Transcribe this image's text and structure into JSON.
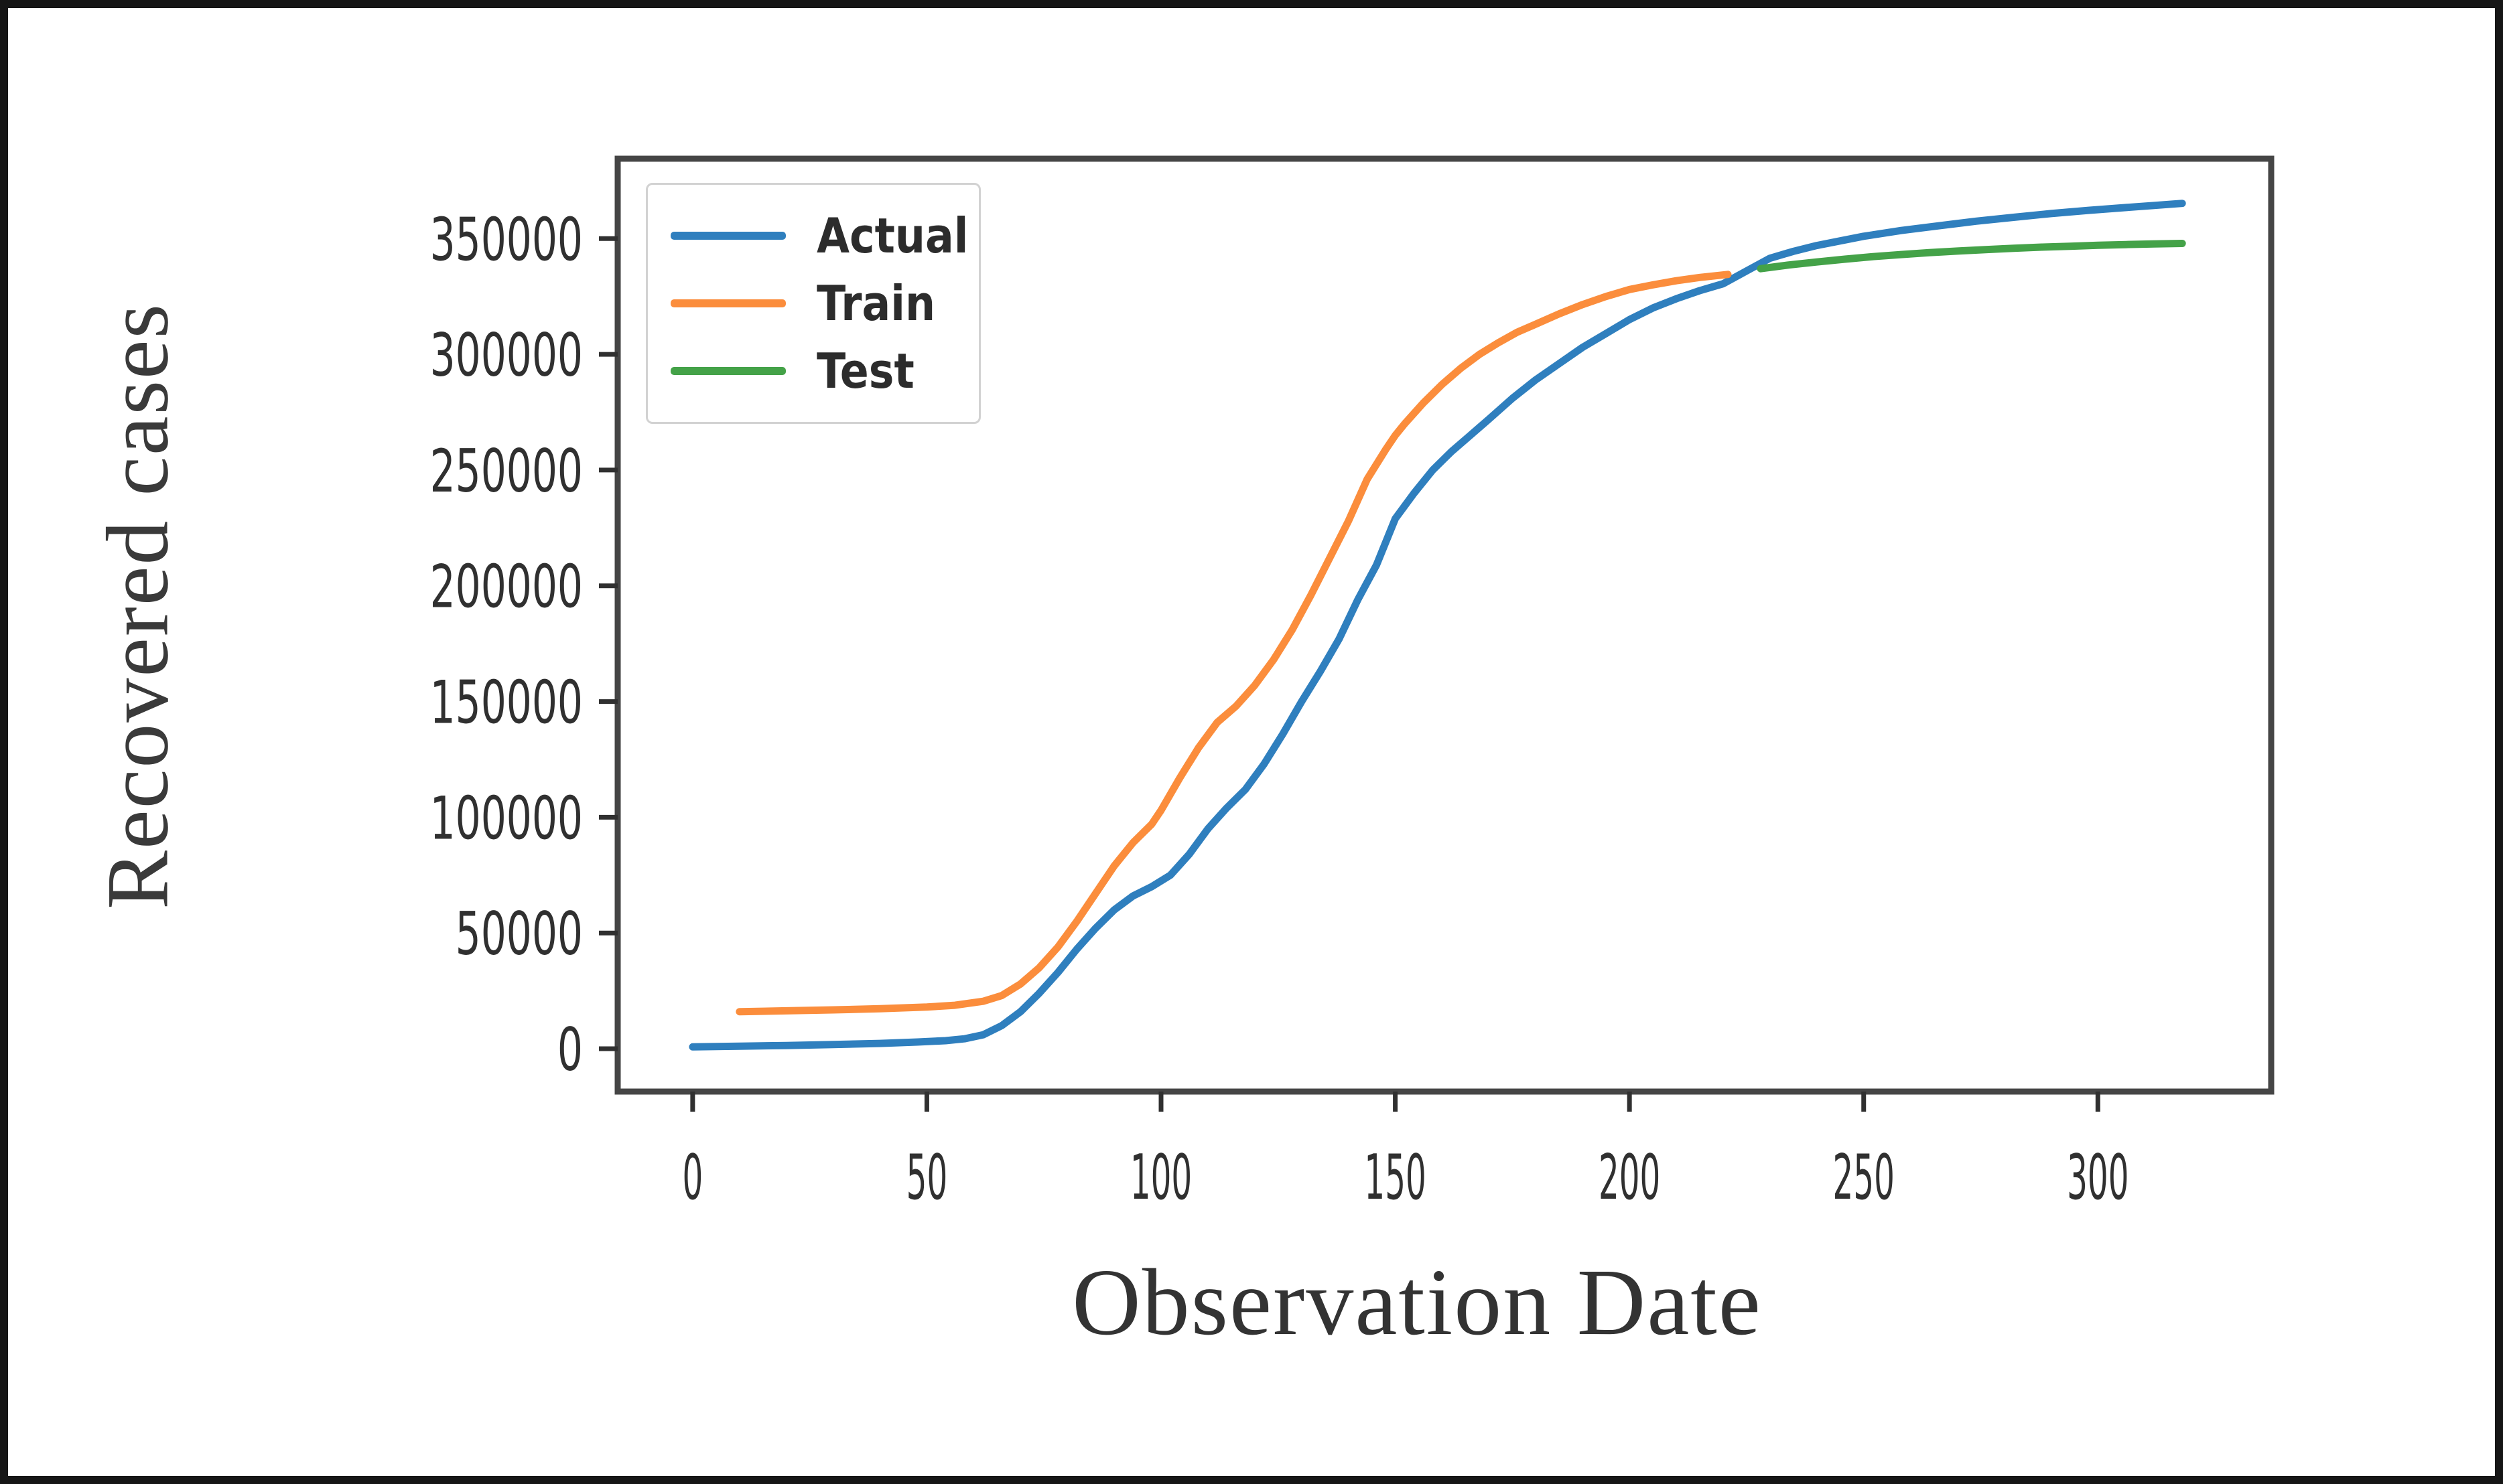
{
  "figure": {
    "background": "#ffffff",
    "border_color": "#161616",
    "spine_color": "#454545",
    "tick_color": "#303030"
  },
  "chart_data": {
    "type": "line",
    "title": "",
    "xlabel": "Observation Date",
    "ylabel": "Recovered cases",
    "grid": false,
    "legend_position": "upper left",
    "xlim": [
      -16,
      337
    ],
    "ylim": [
      -18500,
      384500
    ],
    "x_ticks": [
      0,
      50,
      100,
      150,
      200,
      250,
      300
    ],
    "y_ticks": [
      0,
      50000,
      100000,
      150000,
      200000,
      250000,
      300000,
      350000
    ],
    "series": [
      {
        "name": "Actual",
        "color": "#2f7fbe",
        "points": [
          [
            0,
            800
          ],
          [
            10,
            1100
          ],
          [
            20,
            1400
          ],
          [
            30,
            1800
          ],
          [
            40,
            2300
          ],
          [
            48,
            2900
          ],
          [
            54,
            3500
          ],
          [
            58,
            4300
          ],
          [
            62,
            6000
          ],
          [
            66,
            10000
          ],
          [
            70,
            16000
          ],
          [
            74,
            24000
          ],
          [
            78,
            33000
          ],
          [
            82,
            43000
          ],
          [
            86,
            52000
          ],
          [
            90,
            60000
          ],
          [
            94,
            66000
          ],
          [
            98,
            70000
          ],
          [
            102,
            75000
          ],
          [
            106,
            84000
          ],
          [
            110,
            95000
          ],
          [
            114,
            104000
          ],
          [
            118,
            112000
          ],
          [
            122,
            123000
          ],
          [
            126,
            136000
          ],
          [
            130,
            150000
          ],
          [
            134,
            163000
          ],
          [
            138,
            177000
          ],
          [
            142,
            194000
          ],
          [
            146,
            209000
          ],
          [
            150,
            229000
          ],
          [
            154,
            240000
          ],
          [
            158,
            250000
          ],
          [
            162,
            258000
          ],
          [
            166,
            265000
          ],
          [
            170,
            272000
          ],
          [
            175,
            281000
          ],
          [
            180,
            289000
          ],
          [
            185,
            296000
          ],
          [
            190,
            303000
          ],
          [
            195,
            309000
          ],
          [
            200,
            315000
          ],
          [
            205,
            320000
          ],
          [
            210,
            324000
          ],
          [
            215,
            327500
          ],
          [
            220,
            330500
          ],
          [
            225,
            336000
          ],
          [
            230,
            341500
          ],
          [
            235,
            344500
          ],
          [
            240,
            347000
          ],
          [
            245,
            349000
          ],
          [
            250,
            351000
          ],
          [
            258,
            353500
          ],
          [
            266,
            355500
          ],
          [
            274,
            357500
          ],
          [
            282,
            359200
          ],
          [
            290,
            360800
          ],
          [
            298,
            362200
          ],
          [
            306,
            363400
          ],
          [
            312,
            364300
          ],
          [
            318,
            365200
          ]
        ]
      },
      {
        "name": "Train",
        "color": "#fb8d3c",
        "points": [
          [
            10,
            16000
          ],
          [
            20,
            16400
          ],
          [
            30,
            16800
          ],
          [
            40,
            17300
          ],
          [
            50,
            18000
          ],
          [
            56,
            18800
          ],
          [
            62,
            20500
          ],
          [
            66,
            23000
          ],
          [
            70,
            28000
          ],
          [
            74,
            35000
          ],
          [
            78,
            44000
          ],
          [
            82,
            55000
          ],
          [
            86,
            67000
          ],
          [
            90,
            79000
          ],
          [
            94,
            89000
          ],
          [
            98,
            97000
          ],
          [
            100,
            103000
          ],
          [
            104,
            117000
          ],
          [
            108,
            130000
          ],
          [
            112,
            141000
          ],
          [
            116,
            148000
          ],
          [
            120,
            157000
          ],
          [
            124,
            168000
          ],
          [
            128,
            181000
          ],
          [
            132,
            196000
          ],
          [
            136,
            212000
          ],
          [
            140,
            228000
          ],
          [
            144,
            246000
          ],
          [
            148,
            259000
          ],
          [
            150,
            265000
          ],
          [
            152,
            270000
          ],
          [
            156,
            279000
          ],
          [
            160,
            287000
          ],
          [
            164,
            294000
          ],
          [
            168,
            300000
          ],
          [
            172,
            305000
          ],
          [
            176,
            309500
          ],
          [
            180,
            313000
          ],
          [
            185,
            317500
          ],
          [
            190,
            321500
          ],
          [
            195,
            325000
          ],
          [
            200,
            328000
          ],
          [
            205,
            330000
          ],
          [
            210,
            331800
          ],
          [
            215,
            333200
          ],
          [
            221,
            334500
          ]
        ]
      },
      {
        "name": "Test",
        "color": "#44a248",
        "points": [
          [
            228,
            337000
          ],
          [
            234,
            338600
          ],
          [
            240,
            339900
          ],
          [
            246,
            341100
          ],
          [
            252,
            342200
          ],
          [
            258,
            343100
          ],
          [
            264,
            343900
          ],
          [
            270,
            344600
          ],
          [
            276,
            345200
          ],
          [
            282,
            345800
          ],
          [
            288,
            346300
          ],
          [
            294,
            346700
          ],
          [
            300,
            347100
          ],
          [
            306,
            347400
          ],
          [
            312,
            347700
          ],
          [
            318,
            347900
          ]
        ]
      }
    ]
  }
}
